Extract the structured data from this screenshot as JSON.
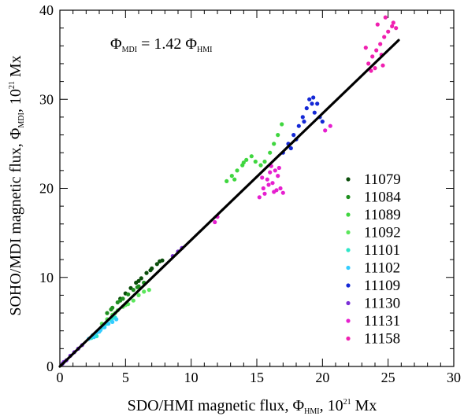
{
  "chart_data": {
    "type": "scatter",
    "xlim": [
      0,
      30
    ],
    "ylim": [
      0,
      40
    ],
    "x_ticks": [
      "0",
      "5",
      "10",
      "15",
      "20",
      "25",
      "30"
    ],
    "y_ticks": [
      "0",
      "10",
      "20",
      "30",
      "40"
    ],
    "xlabel": "SDO/HMI magnetic flux, Φ",
    "xlabel_sub": "HMI",
    "xlabel_tail": ", 10",
    "xlabel_sup": "21",
    "xlabel_unit": " Mx",
    "ylabel": "SOHO/MDI magnetic flux, Φ",
    "ylabel_sub": "MDI",
    "ylabel_tail": ", 10",
    "ylabel_sup": "21",
    "ylabel_unit": " Mx",
    "annotation": {
      "lhs": "Φ",
      "lhs_sub": "MDI",
      "mid": " = 1.42 Φ",
      "rhs_sub": "HMI"
    },
    "fit_line": {
      "slope": 1.42,
      "x_range": [
        0,
        25.8
      ]
    },
    "grid": false,
    "legend_position": "right",
    "series": [
      {
        "name": "11079",
        "color": "#0b4d0b",
        "points": [
          [
            4.6,
            7.6
          ],
          [
            5.0,
            8.2
          ],
          [
            5.4,
            8.8
          ],
          [
            5.8,
            9.4
          ],
          [
            6.2,
            9.9
          ],
          [
            6.6,
            10.5
          ],
          [
            7.0,
            11.0
          ],
          [
            7.4,
            11.5
          ],
          [
            7.8,
            11.9
          ],
          [
            6.0,
            9.6
          ],
          [
            6.9,
            10.8
          ],
          [
            7.6,
            11.8
          ]
        ]
      },
      {
        "name": "11084",
        "color": "#1f8f1f",
        "points": [
          [
            3.6,
            6.0
          ],
          [
            4.0,
            6.6
          ],
          [
            4.4,
            7.2
          ],
          [
            4.8,
            7.6
          ],
          [
            5.2,
            8.1
          ],
          [
            5.6,
            8.6
          ],
          [
            6.0,
            9.0
          ],
          [
            6.4,
            9.4
          ],
          [
            3.9,
            6.4
          ],
          [
            4.6,
            7.4
          ],
          [
            5.9,
            8.9
          ]
        ]
      },
      {
        "name": "11089",
        "color": "#3fd63f",
        "points": [
          [
            12.7,
            20.8
          ],
          [
            13.1,
            21.4
          ],
          [
            13.5,
            22.0
          ],
          [
            13.9,
            22.6
          ],
          [
            14.2,
            23.2
          ],
          [
            14.6,
            23.6
          ],
          [
            14.9,
            23.0
          ],
          [
            15.3,
            22.6
          ],
          [
            15.6,
            23.0
          ],
          [
            16.0,
            24.0
          ],
          [
            16.3,
            25.0
          ],
          [
            16.6,
            26.0
          ],
          [
            16.9,
            27.2
          ],
          [
            13.3,
            21.0
          ],
          [
            14.0,
            22.9
          ]
        ]
      },
      {
        "name": "11092",
        "color": "#5be65b",
        "points": [
          [
            3.2,
            4.8
          ],
          [
            3.6,
            5.3
          ],
          [
            4.0,
            5.8
          ],
          [
            4.4,
            6.3
          ],
          [
            4.8,
            6.7
          ],
          [
            5.2,
            7.0
          ],
          [
            5.6,
            7.4
          ],
          [
            6.0,
            8.0
          ],
          [
            6.4,
            8.4
          ],
          [
            6.8,
            8.6
          ],
          [
            5.0,
            6.9
          ],
          [
            4.2,
            6.0
          ]
        ]
      },
      {
        "name": "11101",
        "color": "#2ee6c8",
        "points": [
          [
            2.4,
            3.2
          ],
          [
            2.7,
            3.6
          ],
          [
            3.0,
            4.0
          ],
          [
            3.3,
            4.4
          ],
          [
            3.6,
            4.8
          ],
          [
            3.9,
            5.2
          ],
          [
            4.2,
            5.5
          ],
          [
            2.8,
            3.4
          ],
          [
            3.4,
            4.6
          ],
          [
            4.0,
            5.4
          ]
        ]
      },
      {
        "name": "11102",
        "color": "#33ccff",
        "points": [
          [
            2.2,
            3.1
          ],
          [
            2.5,
            3.5
          ],
          [
            2.8,
            3.8
          ],
          [
            3.1,
            4.1
          ],
          [
            3.4,
            4.4
          ],
          [
            3.7,
            4.8
          ],
          [
            4.0,
            5.0
          ],
          [
            4.3,
            5.3
          ],
          [
            2.6,
            3.3
          ],
          [
            3.0,
            3.9
          ]
        ]
      },
      {
        "name": "11109",
        "color": "#1428d6",
        "points": [
          [
            17.0,
            24.0
          ],
          [
            17.4,
            25.0
          ],
          [
            17.8,
            26.0
          ],
          [
            18.2,
            27.0
          ],
          [
            18.5,
            28.0
          ],
          [
            18.8,
            29.0
          ],
          [
            19.0,
            30.0
          ],
          [
            19.2,
            29.5
          ],
          [
            19.4,
            28.5
          ],
          [
            19.6,
            29.5
          ],
          [
            19.8,
            28.0
          ],
          [
            20.0,
            27.5
          ],
          [
            18.0,
            25.5
          ],
          [
            18.6,
            27.5
          ],
          [
            19.3,
            30.2
          ],
          [
            17.6,
            24.5
          ]
        ]
      },
      {
        "name": "11130",
        "color": "#7b2fd6",
        "points": [
          [
            0.2,
            0.3
          ],
          [
            0.5,
            0.7
          ],
          [
            0.8,
            1.2
          ],
          [
            1.1,
            1.6
          ],
          [
            1.4,
            2.0
          ],
          [
            8.6,
            12.4
          ],
          [
            9.0,
            12.9
          ],
          [
            9.3,
            13.3
          ],
          [
            1.7,
            2.4
          ],
          [
            0.3,
            0.5
          ]
        ]
      },
      {
        "name": "11131",
        "color": "#e61fcf",
        "points": [
          [
            15.2,
            19.0
          ],
          [
            15.5,
            20.0
          ],
          [
            15.8,
            21.0
          ],
          [
            16.0,
            21.8
          ],
          [
            16.2,
            20.6
          ],
          [
            16.4,
            22.0
          ],
          [
            16.6,
            21.4
          ],
          [
            16.8,
            20.0
          ],
          [
            17.0,
            19.5
          ],
          [
            15.6,
            19.4
          ],
          [
            16.1,
            22.5
          ],
          [
            16.5,
            19.8
          ],
          [
            15.9,
            20.4
          ],
          [
            16.7,
            22.3
          ],
          [
            15.4,
            21.2
          ],
          [
            16.3,
            19.6
          ],
          [
            11.8,
            16.2
          ],
          [
            12.0,
            16.8
          ],
          [
            20.2,
            26.5
          ],
          [
            20.6,
            27.0
          ]
        ]
      },
      {
        "name": "11158",
        "color": "#f020b0",
        "points": [
          [
            23.5,
            34.0
          ],
          [
            23.8,
            34.8
          ],
          [
            24.1,
            35.5
          ],
          [
            24.4,
            36.2
          ],
          [
            24.7,
            37.0
          ],
          [
            25.0,
            37.6
          ],
          [
            25.3,
            38.2
          ],
          [
            25.6,
            38.0
          ],
          [
            24.0,
            33.5
          ],
          [
            24.6,
            33.8
          ],
          [
            23.3,
            35.8
          ],
          [
            24.2,
            38.4
          ],
          [
            24.8,
            39.2
          ],
          [
            25.4,
            38.6
          ],
          [
            23.7,
            33.2
          ],
          [
            24.5,
            35.0
          ]
        ]
      }
    ]
  }
}
